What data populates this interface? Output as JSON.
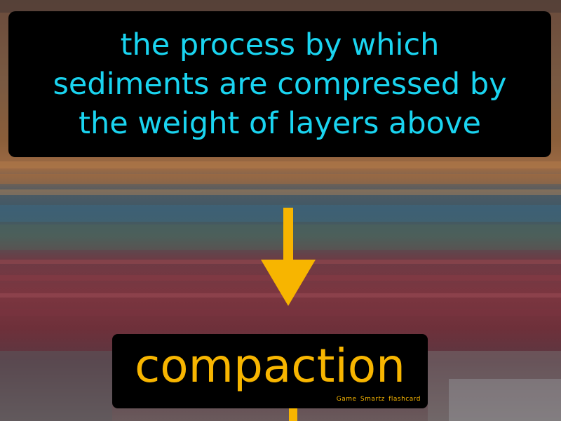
{
  "definition": {
    "lines": [
      "the process by which",
      "sediments are compressed by",
      "the weight of layers above"
    ]
  },
  "term": "compaction",
  "brand": "Game Smartz flashcard",
  "colors": {
    "definition_text": "#1ad4f0",
    "term_text": "#f7b500",
    "arrow": "#f7b500",
    "box_background": "#000000"
  },
  "icons": {
    "arrow": "arrow-down-icon"
  }
}
